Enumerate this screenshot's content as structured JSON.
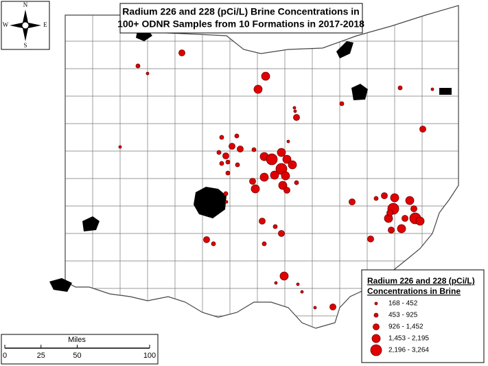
{
  "title": {
    "lines": [
      "Radium 226 and 228 (pCi/L) Brine Concentrations in",
      "100+ ODNR Samples from 10 Formations in 2017-2018"
    ]
  },
  "compass": {
    "north": "N",
    "south": "S",
    "east": "E",
    "west": "W"
  },
  "legend": {
    "title_lines": [
      "Radium 226 and 228 (pCi/L)",
      "Concentrations in Brine"
    ],
    "classes": [
      "168 - 452",
      "453 - 925",
      "926 - 1,452",
      "1,453 - 2,195",
      "2,196 - 3,264"
    ]
  },
  "scale": {
    "title": "Miles",
    "ticks": [
      0,
      25,
      50,
      100
    ]
  }
}
